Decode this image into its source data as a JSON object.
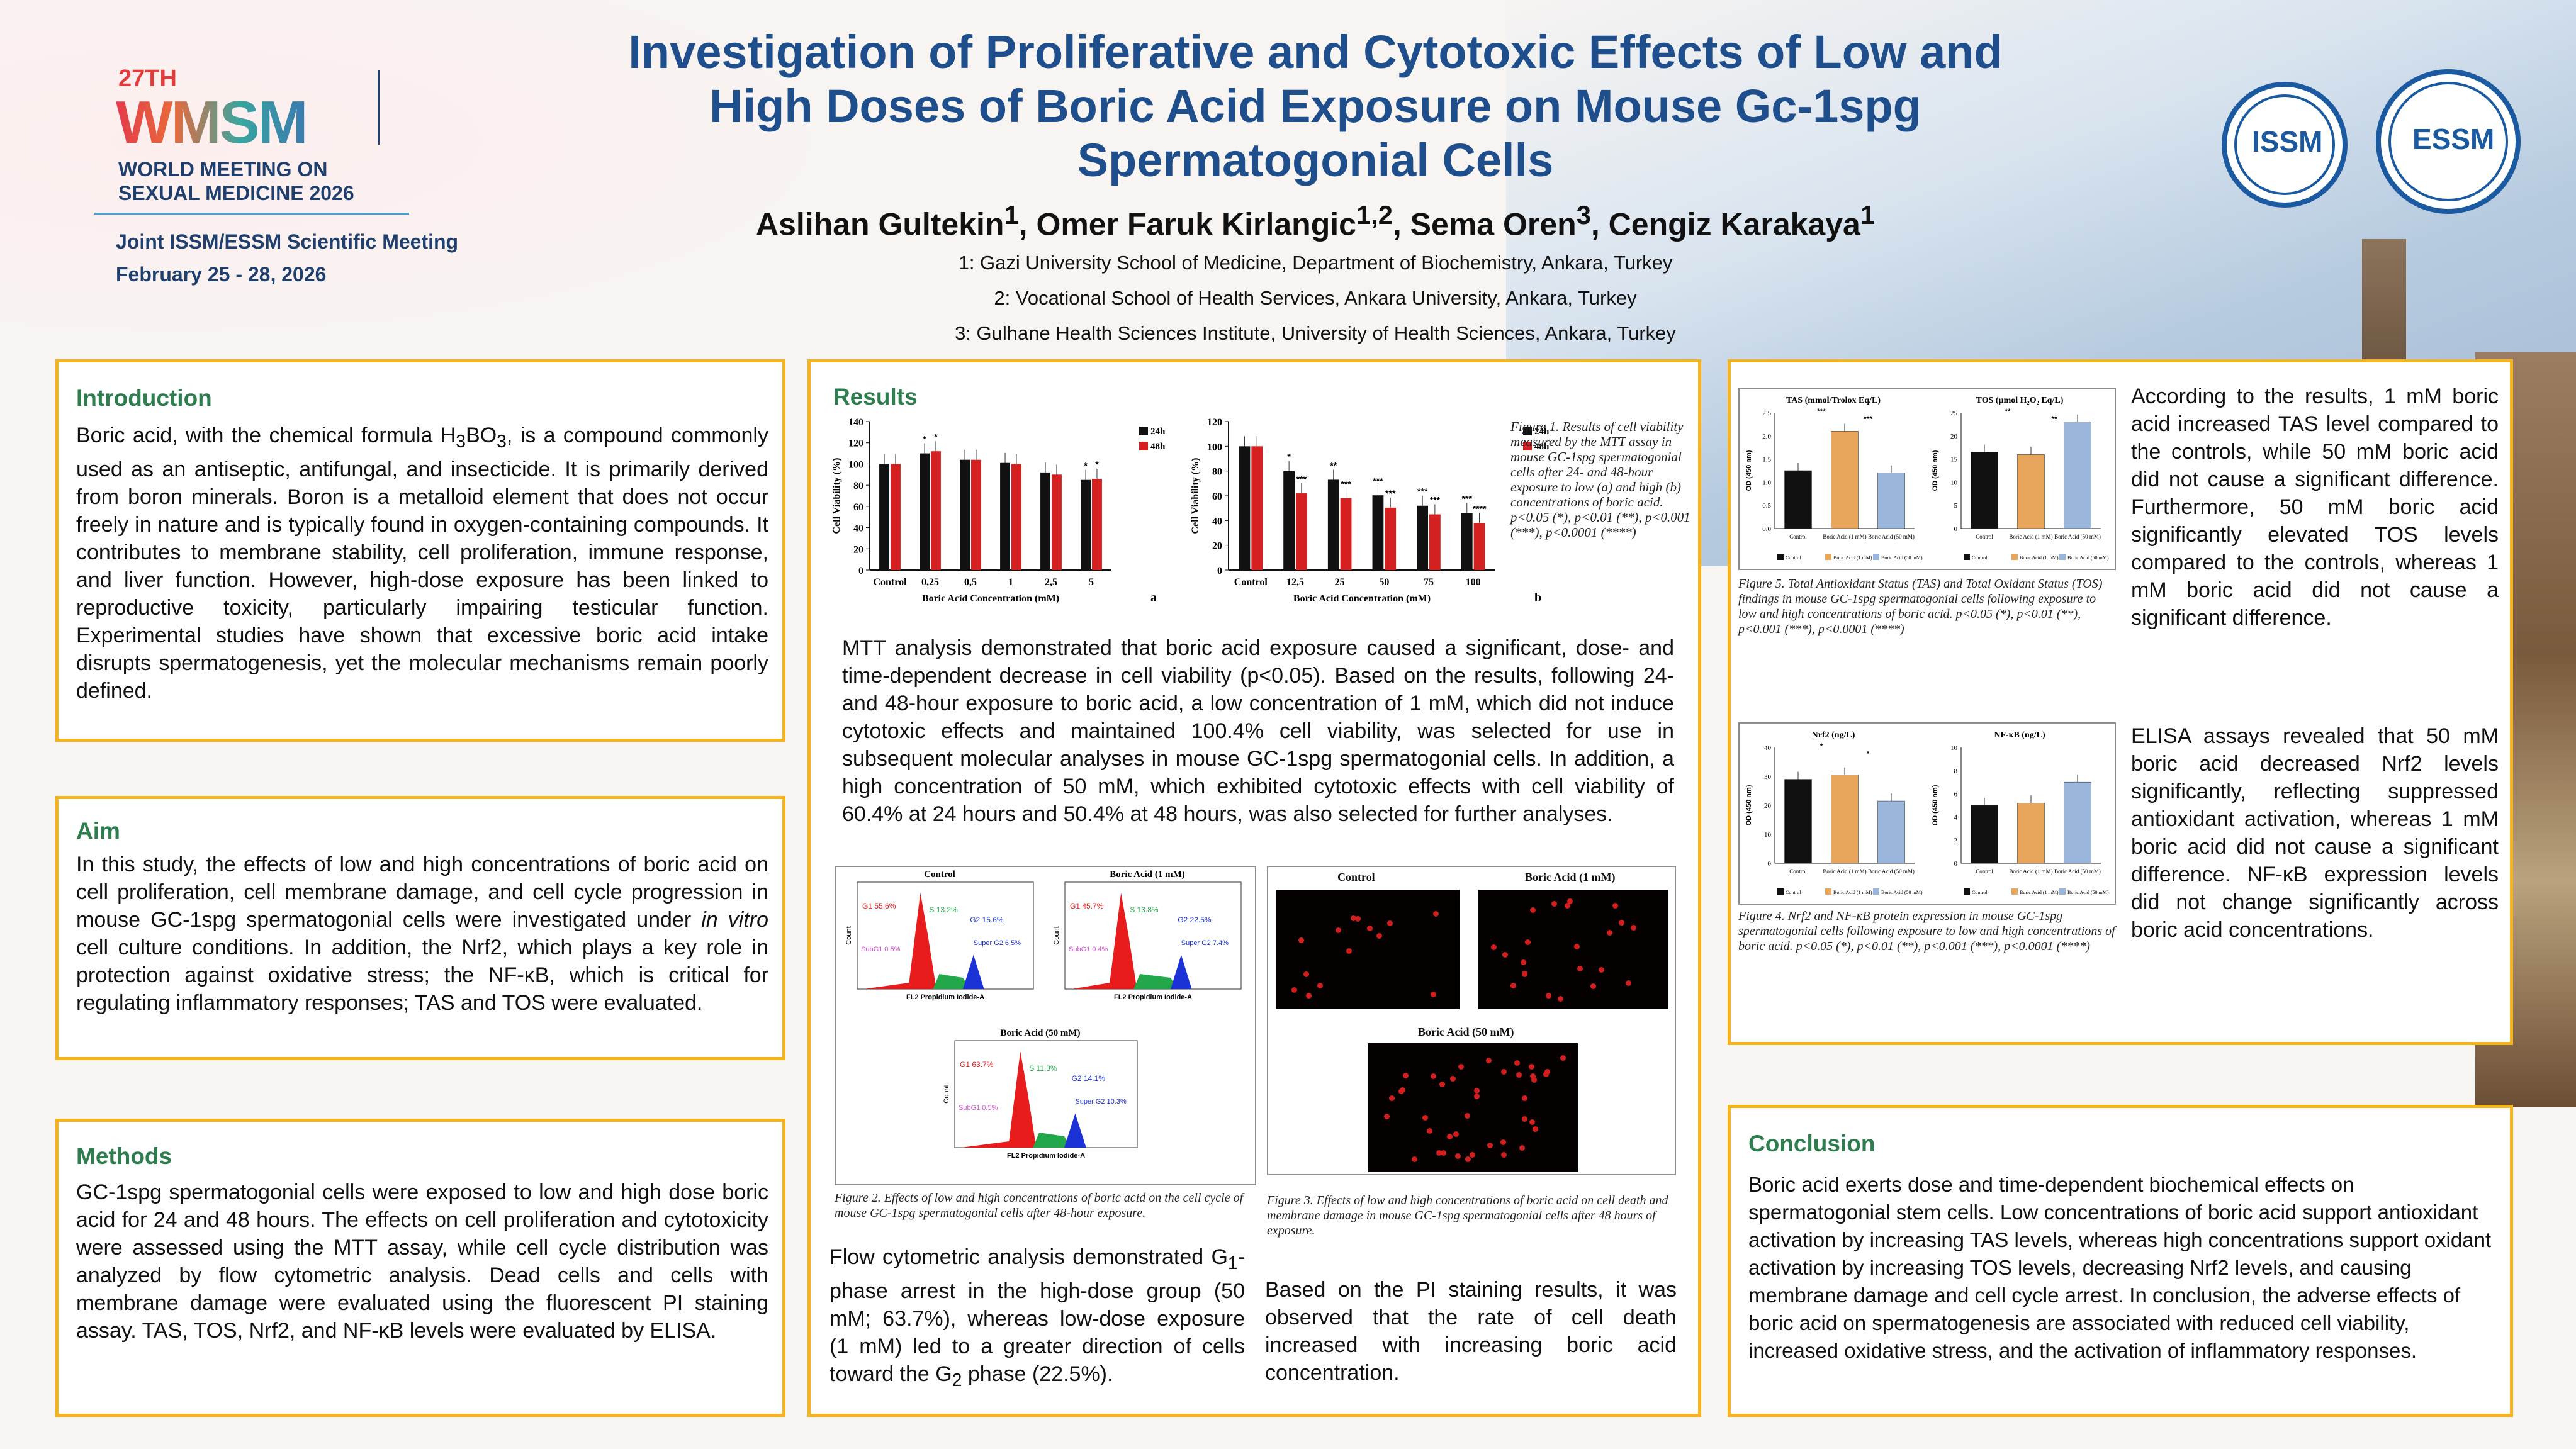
{
  "header": {
    "logo_edition": "27TH",
    "logo_name": "WMSM",
    "logo_sub_1": "WORLD MEETING ON",
    "logo_sub_2": "SEXUAL MEDICINE 2026",
    "meeting": "Joint ISSM/ESSM Scientific Meeting",
    "dates": "February 25 - 28, 2026",
    "title_lines": [
      "Investigation of Proliferative and Cytotoxic Effects of Low and",
      "High Doses of Boric Acid Exposure on Mouse Gc-1spg",
      "Spermatogonial Cells"
    ],
    "authors": [
      {
        "name": "Aslihan Gultekin",
        "sup": "1"
      },
      {
        "name": "Omer Faruk Kirlangic",
        "sup": "1,2"
      },
      {
        "name": "Sema Oren",
        "sup": "3"
      },
      {
        "name": "Cengiz Karakaya",
        "sup": "1"
      }
    ],
    "affiliations": [
      "1: Gazi University School of Medicine, Department of Biochemistry, Ankara, Turkey",
      "2: Vocational School of Health Services, Ankara University, Ankara, Turkey",
      "3: Gulhane Health Sciences Institute, University of Health Sciences, Ankara, Turkey"
    ],
    "seal_issm": "ISSM",
    "seal_essm": "ESSM"
  },
  "introduction": {
    "heading": "Introduction",
    "text_1": "Boric acid, with the chemical formula H",
    "text_2": "BO",
    "text_3": ", is a compound commonly used as an antiseptic, antifungal, and insecticide. It is primarily derived from boron minerals. Boron is a metalloid element that does not occur freely in nature and is typically found in oxygen-containing compounds. It contributes to membrane stability, cell proliferation, immune response, and liver function. However, high-dose exposure has been linked to reproductive toxicity, particularly impairing testicular function. Experimental studies have shown that excessive boric acid intake disrupts spermatogenesis, yet the molecular mechanisms remain poorly defined.",
    "sub3": "3",
    "sub3b": "3"
  },
  "aim": {
    "heading": "Aim",
    "text_1": "In this study, the effects of low and high concentrations of boric acid on cell proliferation, cell membrane damage, and cell cycle progression in mouse GC-1spg spermatogonial cells were investigated under",
    "text_italic": "in vitro",
    "text_2": "cell culture conditions. In addition, the Nrf2, which plays a key role in protection against oxidative stress; the NF-κB, which is critical for regulating inflammatory responses; TAS and TOS were evaluated."
  },
  "methods": {
    "heading": "Methods",
    "text": "GC-1spg spermatogonial cells were exposed to low and high dose boric acid for 24 and 48 hours. The effects on cell proliferation and cytotoxicity were assessed using the MTT assay, while cell cycle distribution was analyzed by flow cytometric analysis. Dead cells and cells with membrane damage were evaluated using the fluorescent PI staining assay. TAS, TOS, Nrf2, and NF-κB levels were evaluated by ELISA."
  },
  "results": {
    "heading": "Results",
    "fig1_caption": "Figure 1. Results of cell viability measured by the MTT assay in mouse GC-1spg spermatogonial cells after 24- and 48-hour exposure to low (a) and high (b) concentrations of boric acid. p<0.05 (*), p<0.01 (**), p<0.001 (***), p<0.0001 (****)",
    "mtt_text": "MTT analysis demonstrated that boric acid exposure caused a significant, dose- and time-dependent decrease in cell viability (p<0.05). Based on the results, following 24- and 48-hour exposure to boric acid, a low concentration of 1 mM, which did not induce cytotoxic effects and maintained 100.4% cell viability, was selected for use in subsequent molecular analyses in mouse GC-1spg spermatogonial cells. In addition, a high concentration of 50 mM, which exhibited cytotoxic effects with cell viability of 60.4% at 24 hours and 50.4% at 48 hours, was also selected for further analyses.",
    "fig2_caption": "Figure 2. Effects of low and high concentrations of boric acid on the cell cycle of mouse GC-1spg spermatogonial cells after 48-hour exposure.",
    "fig3_caption": "Figure 3. Effects of low and high concentrations of boric acid on cell death and membrane damage in mouse GC-1spg spermatogonial cells after 48 hours of exposure.",
    "flow_text_1": "Flow cytometric analysis demonstrated G",
    "flow_sub1": "1",
    "flow_text_2": "-phase arrest in the high-dose group (50 mM; 63.7%), whereas low-dose exposure (1 mM) led to a greater direction of cells toward the G",
    "flow_sub2": "2",
    "flow_text_3": " phase (22.5%).",
    "pi_text": "Based on the PI staining results, it was observed that the rate of cell death increased with increasing boric acid concentration.",
    "flow_panels": [
      {
        "title": "Control",
        "g1": "G1 55.6%",
        "s": "S 13.2%",
        "g2": "G2 15.6%",
        "subg1": "SubG1 0.5%",
        "superg2": "Super G2 6.5%"
      },
      {
        "title": "Boric Acid (1 mM)",
        "g1": "G1 45.7%",
        "s": "S 13.8%",
        "g2": "G2 22.5%",
        "subg1": "SubG1 0.4%",
        "superg2": "Super G2 7.4%"
      },
      {
        "title": "Boric Acid (50 mM)",
        "g1": "G1 63.7%",
        "s": "S 11.3%",
        "g2": "G2 14.1%",
        "subg1": "SubG1 0.5%",
        "superg2": "Super G2 10.3%"
      }
    ],
    "flow_xlabel": "FL2 Propidium Iodide-A",
    "flow_ylabel": "Count",
    "pi_panels": [
      "Control",
      "Boric Acid (1 mM)",
      "Boric Acid (50 mM)"
    ]
  },
  "right_top": {
    "fig5_caption": "Figure 5. Total Antioxidant Status (TAS) and Total Oxidant Status (TOS) findings in mouse GC-1spg spermatogonial cells following exposure to low and high concentrations of boric acid. p<0.05 (*), p<0.01 (**), p<0.001 (***), p<0.0001 (****)",
    "text": "According to the results, 1 mM boric acid increased TAS level compared to the controls, while 50 mM boric acid did not cause a significant difference. Furthermore, 50 mM boric acid significantly elevated TOS levels compared to the controls, whereas 1 mM boric acid did not cause a significant difference.",
    "fig4_caption": "Figure 4. Nrf2 and NF-κB protein expression in mouse GC-1spg spermatogonial cells following exposure to low and high concentrations of boric acid. p<0.05 (*), p<0.01 (**), p<0.001 (***), p<0.0001 (****)",
    "text2": "ELISA assays revealed that 50 mM boric acid decreased Nrf2 levels significantly, reflecting suppressed antioxidant activation, whereas 1 mM boric acid did not cause a significant difference. NF-κB expression levels did not change significantly across boric acid concentrations."
  },
  "conclusion": {
    "heading": "Conclusion",
    "text": "Boric acid exerts dose and time-dependent biochemical effects on spermatogonial stem cells. Low concentrations of boric acid support antioxidant activation by increasing TAS levels, whereas high concentrations support oxidant activation by increasing TOS levels, decreasing Nrf2 levels, and causing membrane damage and cell cycle arrest. In conclusion, the adverse effects of boric acid on spermatogenesis are associated with reduced cell viability, increased oxidative stress, and the activation of inflammatory responses."
  },
  "colors": {
    "accent_border": "#f5b41e",
    "heading_green": "#2e7d4e",
    "title_blue": "#1f4e8c",
    "bar_24h": "#111111",
    "bar_48h": "#d42020",
    "control": "#111111",
    "low": "#e8a65c",
    "high": "#9ab6dc"
  },
  "chart_data": [
    {
      "id": "fig1a",
      "type": "bar",
      "title": "",
      "panel": "a",
      "xlabel": "Boric Acid Concentration (mM)",
      "ylabel": "Cell Viability (%)",
      "ylim": [
        0,
        140
      ],
      "yticks": [
        "0",
        "20",
        "40",
        "60",
        "80",
        "100",
        "120",
        "140"
      ],
      "categories": [
        "Control",
        "0,25",
        "0,5",
        "1",
        "2,5",
        "5"
      ],
      "series": [
        {
          "name": "24h",
          "values": [
            100,
            110,
            104,
            101,
            92,
            85
          ]
        },
        {
          "name": "48h",
          "values": [
            100,
            112,
            104,
            100,
            90,
            86
          ]
        }
      ],
      "significance": [
        [
          "",
          ""
        ],
        [
          "*",
          "*"
        ],
        [
          "",
          ""
        ],
        [
          "",
          ""
        ],
        [
          "",
          ""
        ],
        [
          "*",
          "*"
        ]
      ]
    },
    {
      "id": "fig1b",
      "type": "bar",
      "title": "",
      "panel": "b",
      "xlabel": "Boric Acid Concentration (mM)",
      "ylabel": "Cell Viability (%)",
      "ylim": [
        0,
        120
      ],
      "yticks": [
        "0",
        "20",
        "40",
        "60",
        "80",
        "100",
        "120"
      ],
      "categories": [
        "Control",
        "12,5",
        "25",
        "50",
        "75",
        "100"
      ],
      "series": [
        {
          "name": "24h",
          "values": [
            100,
            80,
            73,
            60.4,
            52,
            46
          ]
        },
        {
          "name": "48h",
          "values": [
            100,
            62,
            58,
            50.4,
            45,
            38
          ]
        }
      ],
      "significance": [
        [
          "",
          ""
        ],
        [
          "*",
          "***"
        ],
        [
          "**",
          "***"
        ],
        [
          "***",
          "***"
        ],
        [
          "***",
          "***"
        ],
        [
          "***",
          "****"
        ]
      ]
    },
    {
      "id": "tas",
      "type": "bar",
      "title": "TAS (mmol/Trolox Eq/L)",
      "ylabel": "OD (450 nm)",
      "ylim": [
        0,
        2.5
      ],
      "yticks": [
        "0.0",
        "0.5",
        "1.0",
        "1.5",
        "2.0",
        "2.5"
      ],
      "categories": [
        "Control",
        "Boric Acid (1 mM)",
        "Boric Acid (50 mM)"
      ],
      "values": [
        1.25,
        2.1,
        1.2
      ],
      "sig_top": [
        "***",
        "***"
      ]
    },
    {
      "id": "tos",
      "type": "bar",
      "title": "TOS (µmol H₂O₂ Eq/L)",
      "ylabel": "OD (450 nm)",
      "ylim": [
        0,
        25
      ],
      "yticks": [
        "0",
        "5",
        "10",
        "15",
        "20",
        "25"
      ],
      "categories": [
        "Control",
        "Boric Acid (1 mM)",
        "Boric Acid (50 mM)"
      ],
      "values": [
        16.5,
        16,
        23
      ],
      "sig_top": [
        "**",
        "**"
      ]
    },
    {
      "id": "nrf2",
      "type": "bar",
      "title": "Nrf2 (ng/L)",
      "ylabel": "OD (450 nm)",
      "ylim": [
        0,
        40
      ],
      "yticks": [
        "0",
        "10",
        "20",
        "30",
        "40"
      ],
      "categories": [
        "Control",
        "Boric Acid (1 mM)",
        "Boric Acid (50 mM)"
      ],
      "values": [
        29,
        30.5,
        21.5
      ],
      "sig_top": [
        "*",
        "*"
      ]
    },
    {
      "id": "nfkb",
      "type": "bar",
      "title": "NF-κB (ng/L)",
      "ylabel": "OD (450 nm)",
      "ylim": [
        0,
        10
      ],
      "yticks": [
        "0",
        "2",
        "4",
        "6",
        "8",
        "10"
      ],
      "categories": [
        "Control",
        "Boric Acid (1 mM)",
        "Boric Acid (50 mM)"
      ],
      "values": [
        5,
        5.2,
        7
      ],
      "sig_top": []
    }
  ]
}
